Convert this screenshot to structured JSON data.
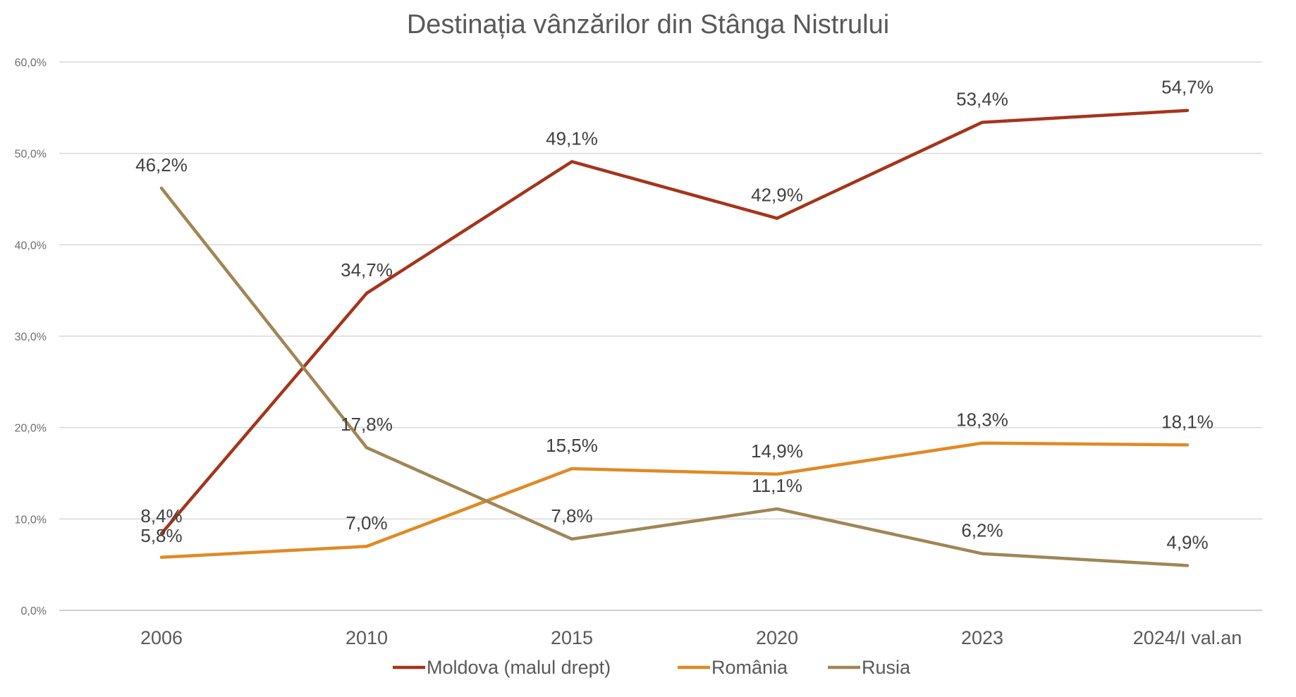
{
  "chart_data": {
    "type": "line",
    "title": "Destinația vânzărilor din Stânga Nistrului",
    "xlabel": "",
    "ylabel": "",
    "categories": [
      "2006",
      "2010",
      "2015",
      "2020",
      "2023",
      "2024/I val.an"
    ],
    "ylim": [
      0,
      60
    ],
    "yticks": [
      "0,0%",
      "10,0%",
      "20,0%",
      "30,0%",
      "40,0%",
      "50,0%",
      "60,0%"
    ],
    "grid": true,
    "legend_position": "bottom",
    "series": [
      {
        "name": "Moldova (malul drept)",
        "color": "#A5341B",
        "values": [
          8.4,
          34.7,
          49.1,
          42.9,
          53.4,
          54.7
        ],
        "labels": [
          "8,4%",
          "34,7%",
          "49,1%",
          "42,9%",
          "53,4%",
          "54,7%"
        ]
      },
      {
        "name": "România",
        "color": "#E08A24",
        "values": [
          5.8,
          7.0,
          15.5,
          14.9,
          18.3,
          18.1
        ],
        "labels": [
          "5,8%",
          "7,0%",
          "15,5%",
          "14,9%",
          "18,3%",
          "18,1%"
        ]
      },
      {
        "name": "Rusia",
        "color": "#A08656",
        "values": [
          46.2,
          17.8,
          7.8,
          11.1,
          6.2,
          4.9
        ],
        "labels": [
          "46,2%",
          "17,8%",
          "7,8%",
          "11,1%",
          "6,2%",
          "4,9%"
        ]
      }
    ]
  }
}
